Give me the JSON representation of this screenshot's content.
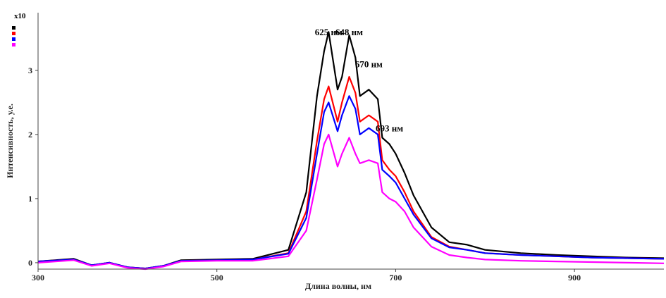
{
  "chart_data": {
    "type": "line",
    "xlabel": "Длина волны, нм",
    "ylabel": "Интенсивность, у.е.",
    "y_multiplier": "x10",
    "xlim": [
      300,
      1000
    ],
    "ylim": [
      -0.1,
      3.9
    ],
    "x_ticks": [
      300,
      500,
      700,
      900
    ],
    "y_ticks": [
      0,
      1,
      2,
      3
    ],
    "grid": false,
    "legend": "top-left",
    "x": [
      300,
      340,
      360,
      380,
      400,
      420,
      440,
      460,
      500,
      540,
      580,
      600,
      612,
      620,
      625,
      635,
      640,
      648,
      655,
      660,
      670,
      680,
      685,
      693,
      700,
      710,
      720,
      740,
      760,
      780,
      800,
      840,
      880,
      920,
      960,
      1000
    ],
    "series": [
      {
        "name": "",
        "color": "#000000",
        "values": [
          0.02,
          0.06,
          -0.04,
          0.0,
          -0.07,
          -0.09,
          -0.05,
          0.04,
          0.05,
          0.06,
          0.2,
          1.1,
          2.6,
          3.3,
          3.6,
          2.7,
          2.9,
          3.55,
          3.2,
          2.6,
          2.7,
          2.55,
          1.95,
          1.85,
          1.7,
          1.4,
          1.05,
          0.55,
          0.32,
          0.28,
          0.2,
          0.15,
          0.12,
          0.1,
          0.08,
          0.07
        ]
      },
      {
        "name": "",
        "color": "#ff0000",
        "values": [
          0.02,
          0.05,
          -0.04,
          0.0,
          -0.07,
          -0.09,
          -0.05,
          0.03,
          0.04,
          0.05,
          0.15,
          0.8,
          1.9,
          2.55,
          2.75,
          2.2,
          2.5,
          2.9,
          2.65,
          2.2,
          2.3,
          2.2,
          1.6,
          1.45,
          1.35,
          1.1,
          0.8,
          0.4,
          0.25,
          0.2,
          0.15,
          0.12,
          0.1,
          0.08,
          0.07,
          0.06
        ]
      },
      {
        "name": "",
        "color": "#0000ff",
        "values": [
          0.02,
          0.05,
          -0.04,
          0.0,
          -0.07,
          -0.09,
          -0.05,
          0.03,
          0.04,
          0.05,
          0.14,
          0.7,
          1.7,
          2.35,
          2.5,
          2.05,
          2.3,
          2.6,
          2.4,
          2.0,
          2.1,
          2.0,
          1.45,
          1.35,
          1.25,
          1.0,
          0.75,
          0.38,
          0.24,
          0.2,
          0.15,
          0.12,
          0.1,
          0.08,
          0.07,
          0.06
        ]
      },
      {
        "name": "",
        "color": "#ff00ff",
        "values": [
          0.0,
          0.04,
          -0.05,
          -0.01,
          -0.08,
          -0.1,
          -0.06,
          0.02,
          0.03,
          0.03,
          0.1,
          0.5,
          1.3,
          1.85,
          2.0,
          1.5,
          1.7,
          1.95,
          1.7,
          1.55,
          1.6,
          1.55,
          1.1,
          1.0,
          0.95,
          0.8,
          0.55,
          0.25,
          0.12,
          0.08,
          0.05,
          0.03,
          0.02,
          0.01,
          0.0,
          -0.01
        ]
      }
    ],
    "annotations": [
      {
        "text": "625 нм",
        "x": 625,
        "y": 3.55
      },
      {
        "text": "648 нм",
        "x": 648,
        "y": 3.55
      },
      {
        "text": "670 нм",
        "x": 670,
        "y": 3.05
      },
      {
        "text": "693 нм",
        "x": 693,
        "y": 2.05
      }
    ]
  }
}
